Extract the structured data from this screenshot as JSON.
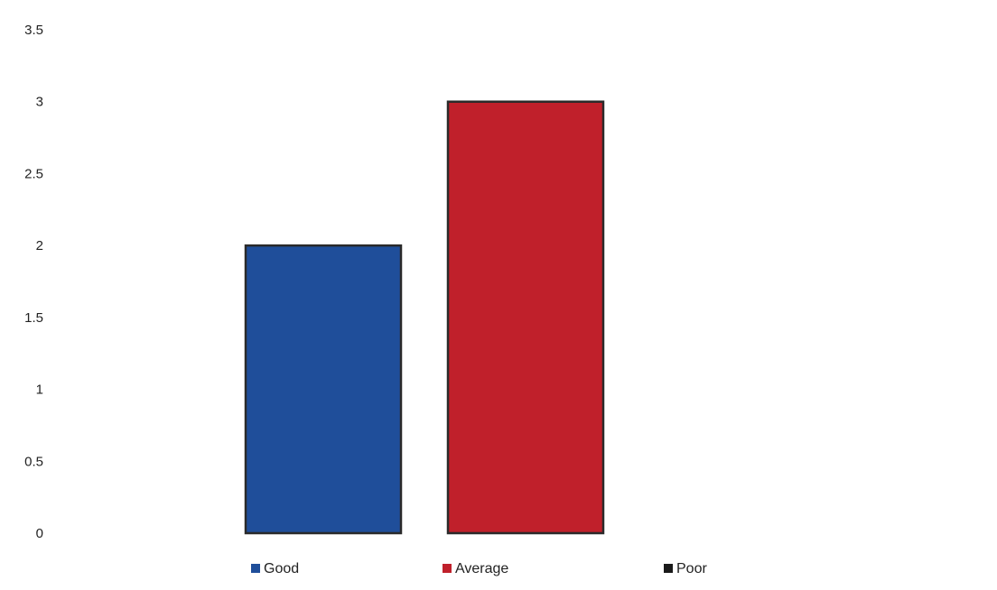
{
  "chart_data": {
    "type": "bar",
    "title": "",
    "xlabel": "",
    "ylabel": "",
    "ylim": [
      0,
      3.5
    ],
    "yticks": [
      "0",
      "0.5",
      "1",
      "1.5",
      "2",
      "2.5",
      "3",
      "3.5"
    ],
    "grid": false,
    "legend_position": "bottom",
    "series": [
      {
        "name": "Good",
        "value": 2,
        "color": "#1f4e9a"
      },
      {
        "name": "Average",
        "value": 3,
        "color": "#c0202b"
      },
      {
        "name": "Poor",
        "value": 0,
        "color": "#1a1a1a"
      }
    ]
  }
}
